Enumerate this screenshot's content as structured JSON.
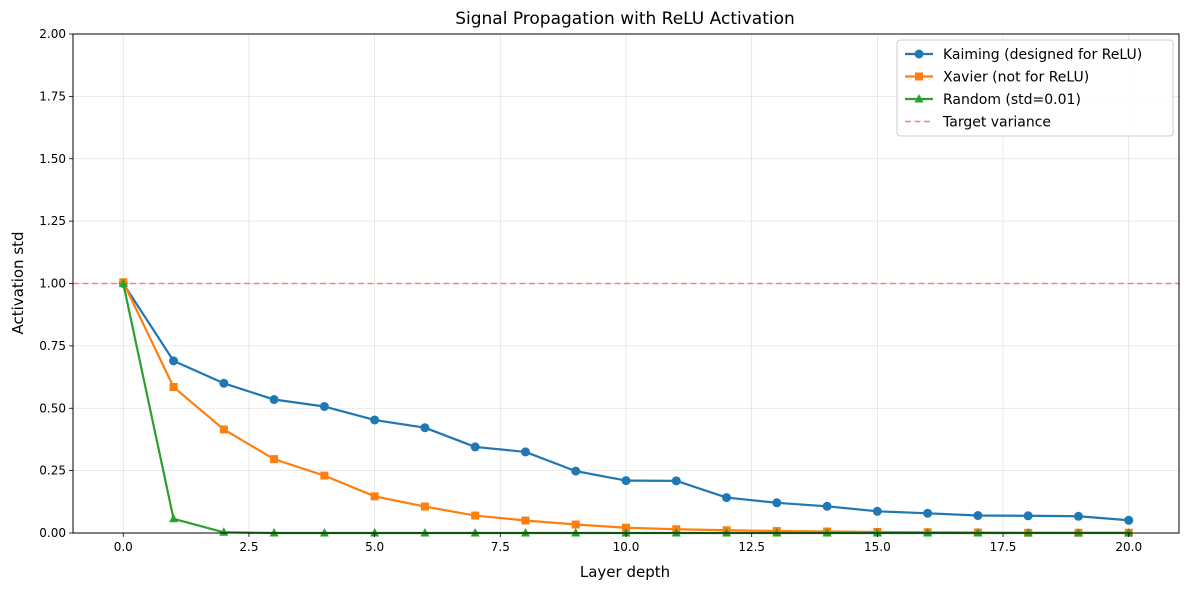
{
  "chart_data": {
    "type": "line",
    "title": "Signal Propagation with ReLU Activation",
    "xlabel": "Layer depth",
    "ylabel": "Activation std",
    "xlim": [
      -1,
      21
    ],
    "ylim": [
      0,
      2
    ],
    "xticks": [
      0.0,
      2.5,
      5.0,
      7.5,
      10.0,
      12.5,
      15.0,
      17.5,
      20.0
    ],
    "xtick_labels": [
      "0.0",
      "2.5",
      "5.0",
      "7.5",
      "10.0",
      "12.5",
      "15.0",
      "17.5",
      "20.0"
    ],
    "yticks": [
      0.0,
      0.25,
      0.5,
      0.75,
      1.0,
      1.25,
      1.5,
      1.75,
      2.0
    ],
    "ytick_labels": [
      "0.00",
      "0.25",
      "0.50",
      "0.75",
      "1.00",
      "1.25",
      "1.50",
      "1.75",
      "2.00"
    ],
    "grid": true,
    "legend_position": "top-right",
    "x": [
      0,
      1,
      2,
      3,
      4,
      5,
      6,
      7,
      8,
      9,
      10,
      11,
      12,
      13,
      14,
      15,
      16,
      17,
      18,
      19,
      20
    ],
    "series": [
      {
        "name": "Kaiming (designed for ReLU)",
        "color": "#1f77b4",
        "marker": "circle",
        "values": [
          1.0,
          0.69,
          0.6,
          0.535,
          0.507,
          0.453,
          0.422,
          0.345,
          0.325,
          0.248,
          0.21,
          0.209,
          0.142,
          0.121,
          0.107,
          0.087,
          0.079,
          0.07,
          0.069,
          0.067,
          0.051
        ]
      },
      {
        "name": "Xavier (not for ReLU)",
        "color": "#ff7f0e",
        "marker": "square",
        "values": [
          1.005,
          0.585,
          0.415,
          0.296,
          0.23,
          0.147,
          0.106,
          0.07,
          0.05,
          0.034,
          0.021,
          0.015,
          0.011,
          0.008,
          0.006,
          0.004,
          0.003,
          0.002,
          0.001,
          0.001,
          0.001
        ]
      },
      {
        "name": "Random (std=0.01)",
        "color": "#2ca02c",
        "marker": "triangle",
        "values": [
          1.0,
          0.057,
          0.003,
          0.0,
          0.0,
          0.0,
          0.0,
          0.0,
          0.0,
          0.0,
          0.0,
          0.0,
          0.0,
          0.0,
          0.0,
          0.0,
          0.0,
          0.0,
          0.0,
          0.0,
          0.0
        ]
      }
    ],
    "reference_line": {
      "name": "Target variance",
      "y": 1.0,
      "color": "#ff7f7f",
      "style": "dashed"
    }
  }
}
